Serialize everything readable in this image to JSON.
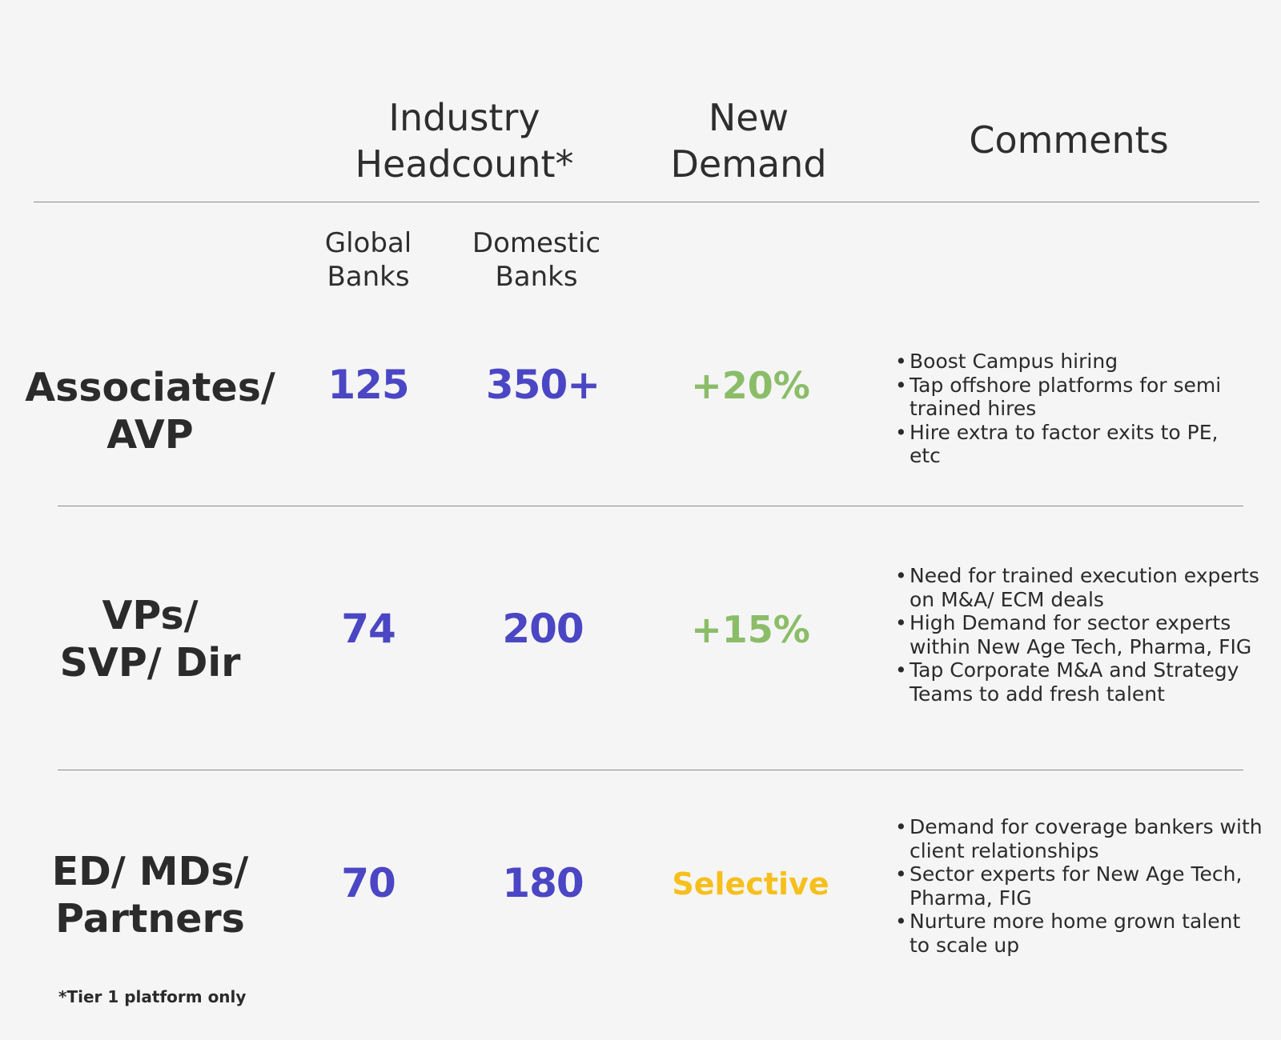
{
  "colors": {
    "number": "#4a46c4",
    "growth": "#8bbd69",
    "selective": "#f6bf1c",
    "text": "#2b2b2b",
    "background": "#f5f5f5"
  },
  "header": {
    "headcount": [
      "Industry",
      "Headcount*"
    ],
    "demand": [
      "New",
      "Demand"
    ],
    "comments": "Comments"
  },
  "subheader": {
    "global": [
      "Global",
      "Banks"
    ],
    "domestic": [
      "Domestic",
      "Banks"
    ]
  },
  "rows": [
    {
      "label": [
        "Associates/",
        "AVP"
      ],
      "global": "125",
      "domestic": "350+",
      "demand": "+20%",
      "comments": [
        "Boost Campus hiring",
        "Tap offshore platforms for semi trained hires",
        "Hire extra to factor exits to PE, etc"
      ]
    },
    {
      "label": [
        "VPs/",
        "SVP/ Dir"
      ],
      "global": "74",
      "domestic": "200",
      "demand": "+15%",
      "comments": [
        "Need for trained execution experts on M&A/ ECM deals",
        "High Demand for sector experts within New Age Tech, Pharma, FIG",
        "Tap Corporate M&A and Strategy Teams to add fresh talent"
      ]
    },
    {
      "label": [
        "ED/ MDs/",
        "Partners"
      ],
      "global": "70",
      "domestic": "180",
      "demand": "Selective",
      "comments": [
        "Demand for coverage bankers with client relationships",
        "Sector experts for New Age Tech, Pharma, FIG",
        "Nurture more home grown talent to scale up"
      ]
    }
  ],
  "footnote": "*Tier 1 platform only"
}
